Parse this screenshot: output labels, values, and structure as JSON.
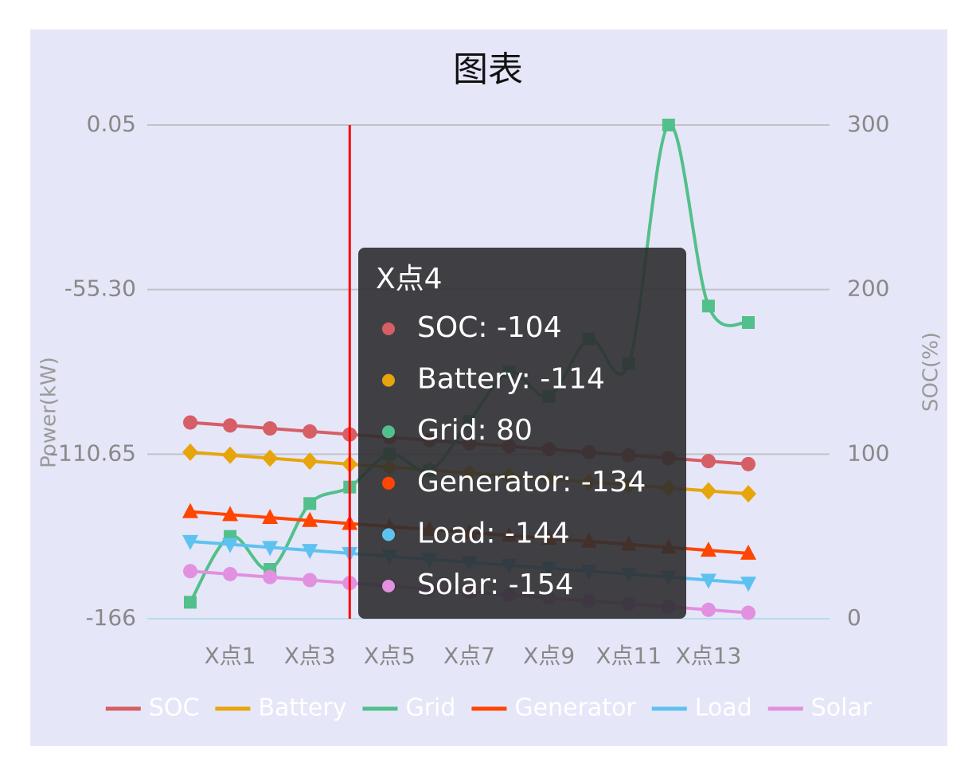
{
  "chart_data": {
    "type": "line",
    "title": "图表",
    "categories": [
      null,
      "X点1",
      null,
      "X点3",
      null,
      "X点5",
      null,
      "X点7",
      null,
      "X点9",
      null,
      "X点11",
      null,
      "X点13",
      null
    ],
    "ylabel": "Power(kW)",
    "y2label": "SOC(%)",
    "ylim": [
      -166,
      0.05
    ],
    "yticks": [
      {
        "value": -166,
        "label": "-166"
      },
      {
        "value": -110.65,
        "label": "-110.65"
      },
      {
        "value": -55.3,
        "label": "-55.30"
      },
      {
        "value": 0.05,
        "label": "0.05"
      }
    ],
    "y2lim": [
      0,
      300
    ],
    "y2ticks": [
      0,
      100,
      200,
      300
    ],
    "grid": true,
    "legend": "bottom",
    "series": [
      {
        "name": "SOC",
        "color": "#d65f66",
        "marker": "circle",
        "values": [
          -100,
          -101,
          -102,
          -103,
          -104,
          -105,
          -106,
          -107,
          -108,
          -109,
          -110,
          -111,
          -112,
          -113,
          -114
        ]
      },
      {
        "name": "Battery",
        "color": "#e6a50a",
        "marker": "diamond",
        "values": [
          -110,
          -111,
          -112,
          -113,
          -114,
          -115,
          -116,
          -117,
          -118,
          -119,
          -120,
          -121,
          -122,
          -123,
          -124
        ]
      },
      {
        "name": "Grid",
        "color": "#52c08a",
        "marker": "square",
        "smooth": true,
        "axis": "y2",
        "values": [
          10,
          50,
          30,
          70,
          80,
          100,
          90,
          120,
          150,
          135,
          170,
          155,
          300,
          190,
          180
        ]
      },
      {
        "name": "Generator",
        "color": "#ff4500",
        "marker": "triangle",
        "values": [
          -130,
          -131,
          -132,
          -133,
          -134,
          -135,
          -136,
          -137,
          -138,
          -139,
          -140,
          -141,
          -142,
          -143,
          -144
        ]
      },
      {
        "name": "Load",
        "color": "#5ec2f0",
        "marker": "triangle-down",
        "values": [
          -140,
          -141,
          -142,
          -143,
          -144,
          -145,
          -146,
          -147,
          -148,
          -149,
          -150,
          -151,
          -152,
          -153,
          -154
        ]
      },
      {
        "name": "Solar",
        "color": "#e191e0",
        "marker": "circle",
        "values": [
          -150,
          -151,
          -152,
          -153,
          -154,
          -155,
          -156,
          -157,
          -158,
          -159,
          -160,
          -161,
          -162,
          -163,
          -164
        ]
      }
    ],
    "tooltip": {
      "title": "X点4",
      "items": [
        "SOC: -104",
        "Battery: -114",
        "Grid: 80",
        "Generator: -134",
        "Load: -144",
        "Solar: -154"
      ]
    }
  }
}
